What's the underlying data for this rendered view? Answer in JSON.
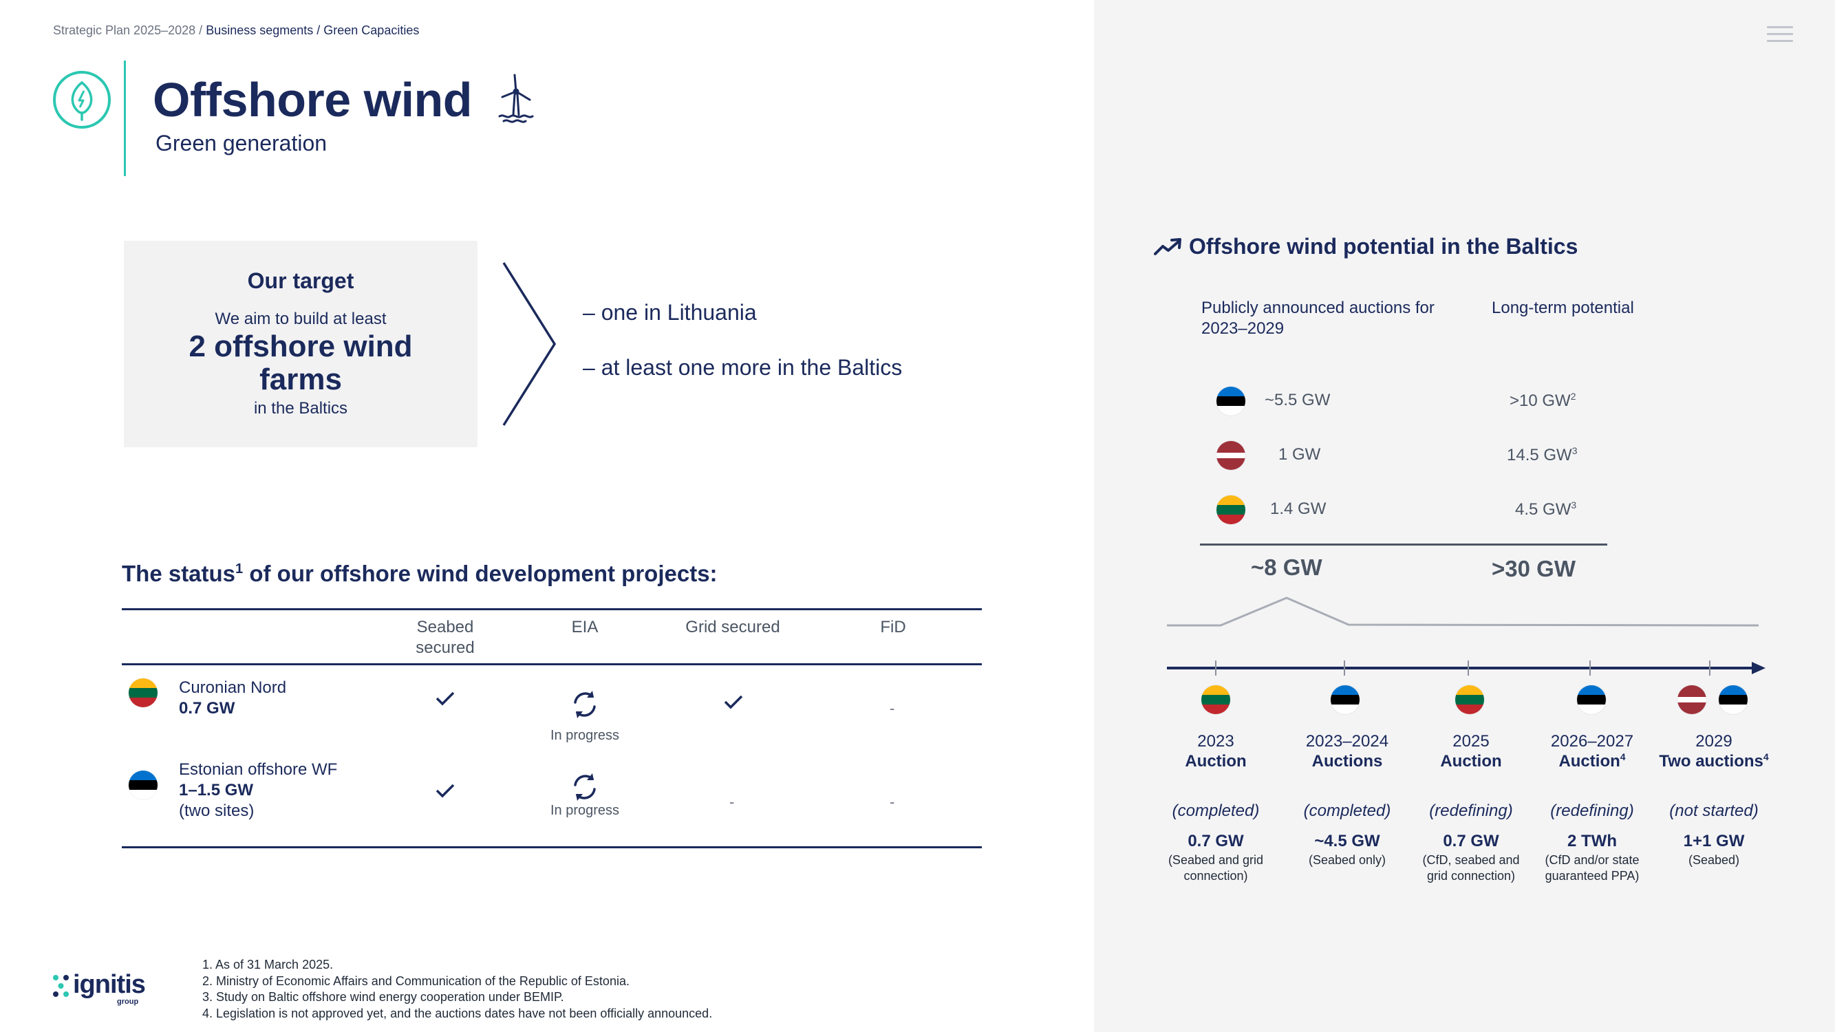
{
  "breadcrumb": {
    "root": "Strategic Plan 2025–2028 /",
    "current": "Business segments / Green Capacities"
  },
  "header": {
    "title": "Offshore wind",
    "subtitle": "Green generation",
    "category_icon": "leaf-bolt-icon",
    "title_icon": "wind-turbine-icon"
  },
  "target": {
    "title": "Our target",
    "lead": "We aim to build at least",
    "main": "2 offshore wind farms",
    "foot": "in the Baltics",
    "points": [
      "– one in Lithuania",
      "– at least one more in the Baltics"
    ]
  },
  "status": {
    "heading": "The status",
    "heading_sup": "1",
    "heading_rest": " of our offshore wind development projects:",
    "columns": [
      "Seabed secured",
      "EIA",
      "Grid secured",
      "FiD"
    ],
    "projects": [
      {
        "flag": "lithuania",
        "name": "Curonian Nord",
        "capacity": "0.7 GW",
        "extra": "",
        "seabed": "check",
        "eia": "In progress",
        "grid": "check",
        "fid": "-"
      },
      {
        "flag": "estonia",
        "name": "Estonian offshore WF",
        "capacity": "1–1.5 GW",
        "extra": "(two sites)",
        "seabed": "check",
        "eia": "In progress",
        "grid": "-",
        "fid": "-"
      }
    ]
  },
  "footnotes": [
    "1.  As of 31 March 2025.",
    "2.  Ministry of Economic Affairs and Communication of the Republic of Estonia.",
    "3.  Study on Baltic offshore wind energy cooperation under BEMIP.",
    "4.  Legislation is not approved yet, and the auctions dates have not been officially announced."
  ],
  "logo": {
    "name": "ignitis",
    "sub": "group"
  },
  "potential": {
    "heading": "Offshore wind potential in the Baltics",
    "col1_head": "Publicly announced auctions for 2023–2029",
    "col2_head": "Long-term potential",
    "rows": [
      {
        "flag": "estonia",
        "announced": "~5.5 GW",
        "potential": ">10 GW",
        "sup": "2"
      },
      {
        "flag": "latvia",
        "announced": "1 GW",
        "potential": "14.5 GW",
        "sup": "3"
      },
      {
        "flag": "lithuania",
        "announced": "1.4 GW",
        "potential": "4.5 GW",
        "sup": "3"
      }
    ],
    "total_announced": "~8 GW",
    "total_potential": ">30 GW"
  },
  "timeline": [
    {
      "flags": [
        "lithuania"
      ],
      "year": "2023",
      "kind": "Auction",
      "sup": "",
      "status": "(completed)",
      "capacity": "0.7 GW",
      "note": "(Seabed and grid connection)"
    },
    {
      "flags": [
        "estonia"
      ],
      "year": "2023–2024",
      "kind": "Auctions",
      "sup": "",
      "status": "(completed)",
      "capacity": "~4.5 GW",
      "note": "(Seabed only)"
    },
    {
      "flags": [
        "lithuania"
      ],
      "year": "2025",
      "kind": "Auction",
      "sup": "",
      "status": "(redefining)",
      "capacity": "0.7 GW",
      "note": "(CfD, seabed and grid connection)"
    },
    {
      "flags": [
        "estonia"
      ],
      "year": "2026–2027",
      "kind": "Auction",
      "sup": "4",
      "status": "(redefining)",
      "capacity": "2 TWh",
      "note": "(CfD and/or state guaranteed PPA)"
    },
    {
      "flags": [
        "latvia",
        "estonia"
      ],
      "year": "2029",
      "kind": "Two auctions",
      "sup": "4",
      "status": "(not started)",
      "capacity": "1+1 GW",
      "note": "(Seabed)"
    }
  ],
  "colors": {
    "navy": "#1b2a5c",
    "teal": "#2bc7b1",
    "panel": "#f4f4f5"
  }
}
